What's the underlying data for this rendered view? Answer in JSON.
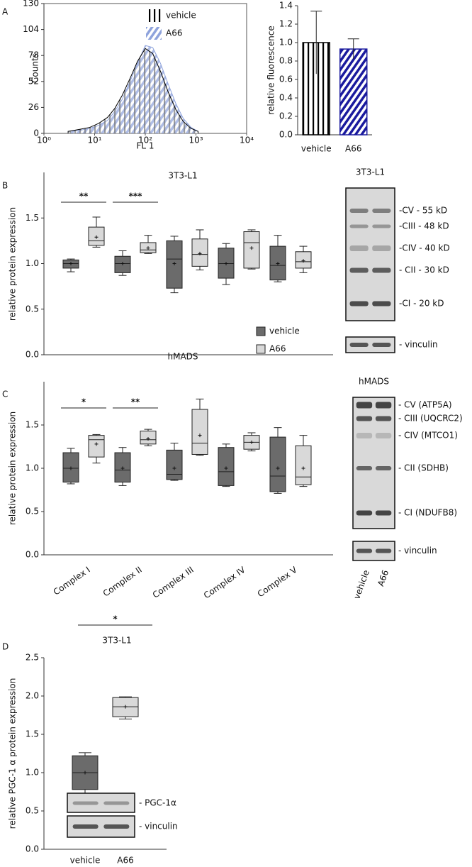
{
  "panel_labels": [
    "A",
    "B",
    "C",
    "D"
  ],
  "chart_data": [
    {
      "type": "histogram",
      "xlabel": "FL 1",
      "ylabel": "Counts",
      "xscale": "log",
      "x": [
        3,
        5,
        8,
        12,
        18,
        25,
        35,
        50,
        70,
        100,
        140,
        200,
        280,
        400,
        560,
        800,
        1100
      ],
      "series": [
        {
          "name": "A66",
          "color": "#8fa3dc",
          "values": [
            2,
            3,
            5,
            8,
            13,
            22,
            34,
            52,
            70,
            88,
            86,
            70,
            50,
            30,
            15,
            6,
            2
          ]
        },
        {
          "name": "vehicle",
          "color": "#000000",
          "values": [
            2,
            4,
            6,
            10,
            16,
            25,
            38,
            55,
            72,
            85,
            80,
            62,
            42,
            24,
            12,
            5,
            2
          ]
        }
      ],
      "xlim": [
        1,
        10000
      ],
      "xticks": [
        {
          "value": 1,
          "label": "10⁰"
        },
        {
          "value": 10,
          "label": "10¹"
        },
        {
          "value": 100,
          "label": "10²"
        },
        {
          "value": 1000,
          "label": "10³"
        },
        {
          "value": 10000,
          "label": "10⁴"
        }
      ],
      "ylim": [
        0,
        130
      ],
      "yticks": [
        0,
        26,
        52,
        78,
        104,
        130
      ]
    },
    {
      "type": "bar",
      "ylabel": "relative  fluorescence",
      "categories": [
        "vehicle",
        "A66"
      ],
      "values": [
        1.0,
        0.93
      ],
      "errors": [
        0.34,
        0.11
      ],
      "colors": [
        "#000000",
        "#1a1a9e"
      ],
      "ylim": [
        0,
        1.4
      ],
      "yticks": [
        {
          "value": 0,
          "label": "0.0"
        },
        {
          "value": 0.2,
          "label": "0.2"
        },
        {
          "value": 0.4,
          "label": "0.4"
        },
        {
          "value": 0.6,
          "label": "0.6"
        },
        {
          "value": 0.8,
          "label": "0.8"
        },
        {
          "value": 1,
          "label": "1.0"
        },
        {
          "value": 1.2,
          "label": "1.2"
        },
        {
          "value": 1.4,
          "label": "1.4"
        }
      ]
    },
    {
      "type": "box",
      "title": "3T3-L1",
      "ylabel": "relative protein expression",
      "categories": [
        null,
        null,
        null,
        null,
        null
      ],
      "significance": [
        "**",
        "***",
        null,
        null,
        null
      ],
      "series": [
        {
          "name": "vehicle",
          "color": "#6b6b6b",
          "boxes": [
            {
              "min": 0.91,
              "q1": 0.95,
              "median": 1.0,
              "q3": 1.04,
              "max": 1.05,
              "mean": 1.0
            },
            {
              "min": 0.87,
              "q1": 0.9,
              "median": 1.0,
              "q3": 1.08,
              "max": 1.14,
              "mean": 1.0
            },
            {
              "min": 0.68,
              "q1": 0.73,
              "median": 1.05,
              "q3": 1.25,
              "max": 1.3,
              "mean": 1.0
            },
            {
              "min": 0.77,
              "q1": 0.84,
              "median": 1.0,
              "q3": 1.17,
              "max": 1.22,
              "mean": 1.0
            },
            {
              "min": 0.8,
              "q1": 0.82,
              "median": 0.98,
              "q3": 1.19,
              "max": 1.31,
              "mean": 1.0
            }
          ]
        },
        {
          "name": "A66",
          "color": "#d9d9d9",
          "boxes": [
            {
              "min": 1.18,
              "q1": 1.2,
              "median": 1.25,
              "q3": 1.4,
              "max": 1.51,
              "mean": 1.29
            },
            {
              "min": 1.11,
              "q1": 1.12,
              "median": 1.15,
              "q3": 1.23,
              "max": 1.31,
              "mean": 1.17
            },
            {
              "min": 0.93,
              "q1": 0.97,
              "median": 1.1,
              "q3": 1.27,
              "max": 1.37,
              "mean": 1.11
            },
            {
              "min": 0.94,
              "q1": 0.95,
              "median": 1.23,
              "q3": 1.35,
              "max": 1.37,
              "mean": 1.17
            },
            {
              "min": 0.9,
              "q1": 0.95,
              "median": 1.02,
              "q3": 1.13,
              "max": 1.19,
              "mean": 1.03
            }
          ]
        }
      ],
      "ylim": [
        0,
        2
      ],
      "yticks": [
        {
          "value": 0,
          "label": "0.0"
        },
        {
          "value": 0.5,
          "label": "0.5"
        },
        {
          "value": 1,
          "label": "1.0"
        },
        {
          "value": 1.5,
          "label": "1.5"
        }
      ]
    },
    {
      "type": "box",
      "title": "hMADS",
      "ylabel": "relative protein expression",
      "categories": [
        "Complex I",
        "Complex II",
        "Complex III",
        "Complex IV",
        "Complex V"
      ],
      "significance": [
        "*",
        "**",
        null,
        null,
        null
      ],
      "series": [
        {
          "color": "#6b6b6b",
          "boxes": [
            {
              "min": 0.82,
              "q1": 0.84,
              "median": 1.0,
              "q3": 1.18,
              "max": 1.23,
              "mean": 1.0
            },
            {
              "min": 0.8,
              "q1": 0.84,
              "median": 0.98,
              "q3": 1.18,
              "max": 1.24,
              "mean": 1.0
            },
            {
              "min": 0.86,
              "q1": 0.87,
              "median": 0.93,
              "q3": 1.21,
              "max": 1.29,
              "mean": 1.0
            },
            {
              "min": 0.79,
              "q1": 0.8,
              "median": 0.96,
              "q3": 1.24,
              "max": 1.28,
              "mean": 1.0
            },
            {
              "min": 0.71,
              "q1": 0.73,
              "median": 0.91,
              "q3": 1.36,
              "max": 1.47,
              "mean": 1.0
            }
          ]
        },
        {
          "color": "#d9d9d9",
          "boxes": [
            {
              "min": 1.06,
              "q1": 1.13,
              "median": 1.33,
              "q3": 1.38,
              "max": 1.39,
              "mean": 1.28
            },
            {
              "min": 1.26,
              "q1": 1.28,
              "median": 1.33,
              "q3": 1.43,
              "max": 1.45,
              "mean": 1.34
            },
            {
              "min": 1.15,
              "q1": 1.16,
              "median": 1.29,
              "q3": 1.68,
              "max": 1.8,
              "mean": 1.38
            },
            {
              "min": 1.2,
              "q1": 1.22,
              "median": 1.3,
              "q3": 1.38,
              "max": 1.41,
              "mean": 1.3
            },
            {
              "min": 0.79,
              "q1": 0.81,
              "median": 0.9,
              "q3": 1.26,
              "max": 1.38,
              "mean": 1.0
            }
          ]
        }
      ],
      "ylim": [
        0,
        2
      ],
      "yticks": [
        {
          "value": 0,
          "label": "0.0"
        },
        {
          "value": 0.5,
          "label": "0.5"
        },
        {
          "value": 1,
          "label": "1.0"
        },
        {
          "value": 1.5,
          "label": "1.5"
        }
      ]
    },
    {
      "type": "box",
      "title": "3T3-L1",
      "ylabel": "relative PGC-1 α protein expression",
      "categories": [
        "vehicle",
        "A66"
      ],
      "significance": [
        "*"
      ],
      "colors": [
        "#6b6b6b",
        "#d9d9d9"
      ],
      "boxes": [
        {
          "min": 0.73,
          "q1": 0.78,
          "median": 1.0,
          "q3": 1.22,
          "max": 1.26,
          "mean": 1.0
        },
        {
          "min": 1.7,
          "q1": 1.73,
          "median": 1.86,
          "q3": 1.98,
          "max": 1.99,
          "mean": 1.86
        }
      ],
      "ylim": [
        0,
        2.5
      ],
      "yticks": [
        {
          "value": 0,
          "label": "0.0"
        },
        {
          "value": 0.5,
          "label": "0.5"
        },
        {
          "value": 1,
          "label": "1.0"
        },
        {
          "value": 1.5,
          "label": "1.5"
        },
        {
          "value": 2,
          "label": "2.0"
        },
        {
          "value": 2.5,
          "label": "2.5"
        }
      ]
    }
  ],
  "blots": [
    {
      "title": "3T3-L1",
      "bands": [
        "-CV - 55 kD",
        "-CIII - 48 kD",
        "-CIV - 40 kD",
        "- CII - 30 kD",
        "-CI - 20 kD"
      ],
      "loading": "- vinculin"
    },
    {
      "title": "hMADS",
      "bands": [
        "- CV (ATP5A)",
        "- CIII (UQCRC2)",
        "- CIV (MTCO1)",
        "- CII (SDHB)",
        "- CI (NDUFB8)"
      ],
      "loading": "- vinculin",
      "lanes": [
        "vehicle",
        "A66"
      ]
    },
    {
      "bands": [
        "- PGC-1α"
      ],
      "loading": "- vinculin"
    }
  ]
}
